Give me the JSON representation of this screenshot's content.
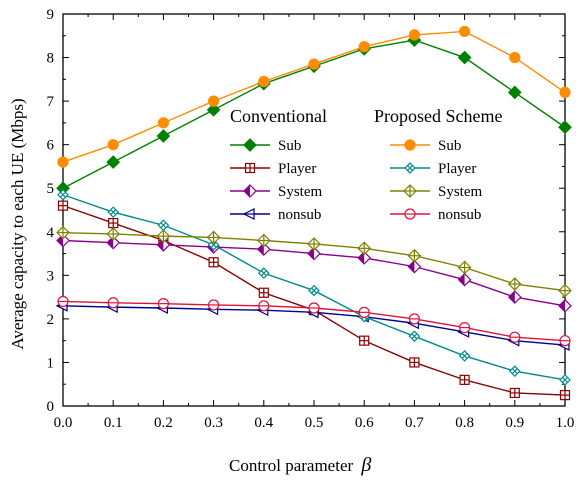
{
  "chart_data": {
    "type": "line",
    "xlabel": "Control parameter",
    "xlabel_symbol": "β",
    "ylabel": "Average capacity to each UE (Mbps)",
    "xlim": [
      0.0,
      1.0
    ],
    "ylim": [
      0,
      9
    ],
    "x_ticks": [
      "0.0",
      "0.1",
      "0.2",
      "0.3",
      "0.4",
      "0.5",
      "0.6",
      "0.7",
      "0.8",
      "0.9",
      "1.0"
    ],
    "y_ticks": [
      "0",
      "1",
      "2",
      "3",
      "4",
      "5",
      "6",
      "7",
      "8",
      "9"
    ],
    "grid": false,
    "legend": {
      "placement": "upper-center",
      "group_titles": [
        "Conventional",
        "Proposed Scheme"
      ]
    },
    "x": [
      0.0,
      0.1,
      0.2,
      0.3,
      0.4,
      0.5,
      0.6,
      0.7,
      0.8,
      0.9,
      1.0
    ],
    "series": [
      {
        "group": "Conventional",
        "name": "Sub",
        "color": "#008000",
        "marker": "diamond-filled",
        "values": [
          5.0,
          5.6,
          6.2,
          6.8,
          7.4,
          7.8,
          8.2,
          8.4,
          8.0,
          7.2,
          6.4
        ]
      },
      {
        "group": "Conventional",
        "name": "Player",
        "color": "#8B0000",
        "marker": "square-plus",
        "values": [
          4.6,
          4.2,
          3.8,
          3.3,
          2.6,
          2.2,
          1.5,
          1.0,
          0.6,
          0.3,
          0.25
        ]
      },
      {
        "group": "Conventional",
        "name": "System",
        "color": "#8B008B",
        "marker": "diamond-half",
        "values": [
          3.8,
          3.75,
          3.7,
          3.65,
          3.6,
          3.5,
          3.4,
          3.2,
          2.9,
          2.5,
          2.3
        ]
      },
      {
        "group": "Conventional",
        "name": "nonsub",
        "color": "#00008B",
        "marker": "triangle-left",
        "values": [
          2.3,
          2.27,
          2.25,
          2.22,
          2.2,
          2.15,
          2.05,
          1.9,
          1.7,
          1.5,
          1.4
        ]
      },
      {
        "group": "Proposed Scheme",
        "name": "Sub",
        "color": "#FF8C00",
        "marker": "circle-filled",
        "values": [
          5.6,
          6.0,
          6.5,
          7.0,
          7.45,
          7.85,
          8.25,
          8.52,
          8.6,
          8.0,
          7.2
        ]
      },
      {
        "group": "Proposed Scheme",
        "name": "Player",
        "color": "#008B8B",
        "marker": "diamond-cross",
        "values": [
          4.85,
          4.45,
          4.15,
          3.7,
          3.05,
          2.65,
          2.05,
          1.6,
          1.15,
          0.8,
          0.6
        ]
      },
      {
        "group": "Proposed Scheme",
        "name": "System",
        "color": "#808000",
        "marker": "diamond-plus",
        "values": [
          3.98,
          3.95,
          3.9,
          3.87,
          3.8,
          3.72,
          3.62,
          3.45,
          3.18,
          2.8,
          2.65
        ]
      },
      {
        "group": "Proposed Scheme",
        "name": "nonsub",
        "color": "#DC143C",
        "marker": "circle-hline",
        "values": [
          2.4,
          2.37,
          2.35,
          2.32,
          2.3,
          2.25,
          2.15,
          2.0,
          1.8,
          1.58,
          1.5
        ]
      }
    ]
  }
}
